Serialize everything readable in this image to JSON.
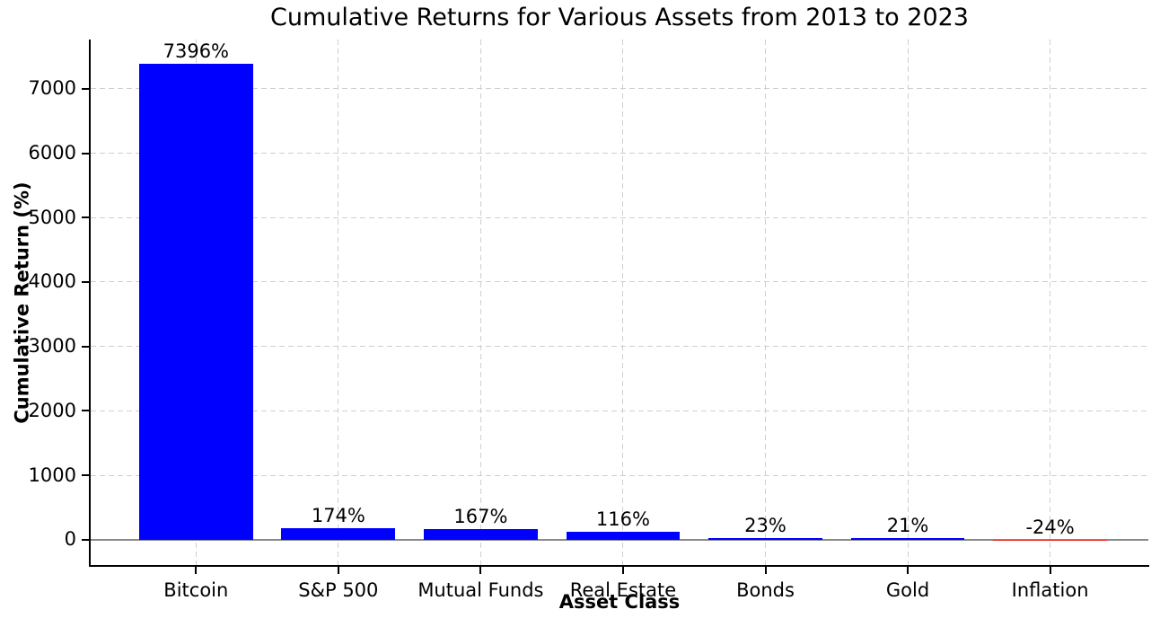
{
  "chart_data": {
    "type": "bar",
    "title": "Cumulative Returns for Various Assets from 2013 to 2023",
    "xlabel": "Asset Class",
    "ylabel": "Cumulative Return (%)",
    "categories": [
      "Bitcoin",
      "S&P 500",
      "Mutual Funds",
      "Real Estate",
      "Bonds",
      "Gold",
      "Inflation"
    ],
    "values": [
      7396,
      174,
      167,
      116,
      23,
      21,
      -24
    ],
    "bar_labels": [
      "7396%",
      "174%",
      "167%",
      "116%",
      "23%",
      "21%",
      "-24%"
    ],
    "bar_colors": [
      "#0000ff",
      "#0000ff",
      "#0000ff",
      "#0000ff",
      "#0000ff",
      "#0000ff",
      "#e8251f"
    ],
    "yticks": [
      0,
      1000,
      2000,
      3000,
      4000,
      5000,
      6000,
      7000
    ],
    "ytick_labels": [
      "0",
      "1000",
      "2000",
      "3000",
      "4000",
      "5000",
      "6000",
      "7000"
    ],
    "ylim": [
      -395,
      7767
    ],
    "xlim": [
      -0.74,
      6.69
    ],
    "bar_width_units": 0.8,
    "grid": "dashed, both axes",
    "legend": "none",
    "colors": {
      "positive_bar": "#0000ff",
      "negative_bar": "#e8251f",
      "grid": "#cfcfcf",
      "zero_line": "#8a8a8a",
      "spine": "#000000",
      "text": "#000000",
      "background": "#ffffff"
    }
  }
}
